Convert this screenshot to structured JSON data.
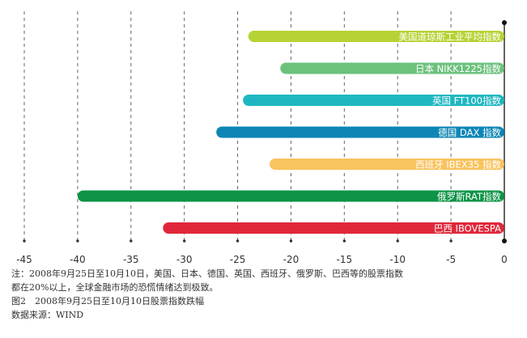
{
  "chart_data": {
    "type": "bar",
    "orientation": "horizontal",
    "categories": [
      "美国道琼斯工业平均指数",
      "日本 NIKK1225指数",
      "英国 FT100指数",
      "德国 DAX 指数",
      "西班牙 IBEX35 指数",
      "俄罗斯RAT指数",
      "巴西 IBOVESPA"
    ],
    "values": [
      -24,
      -21,
      -24.5,
      -27,
      -22,
      -40,
      -32
    ],
    "colors": [
      "#b5d334",
      "#6cc27d",
      "#1eb7c1",
      "#0d86b5",
      "#f9c35f",
      "#0e9447",
      "#e0273a"
    ],
    "x_ticks": [
      "-45",
      "-40",
      "-35",
      "-30",
      "-25",
      "-20",
      "-15",
      "-10",
      "-5",
      "0"
    ],
    "xlim": [
      -45,
      0
    ],
    "grid": "vertical dashed",
    "title": "",
    "xlabel": "",
    "ylabel": ""
  },
  "notes": {
    "line1": "注：2008年9月25日至10月10日，美国、日本、德国、英国、西班牙、俄罗斯、巴西等的股票指数",
    "line2": "都在20%以上，全球金融市场的恐慌情绪达到极致。",
    "caption": "图2　2008年9月25日至10月10日股票指数跌幅",
    "source": "数据来源：WIND"
  }
}
